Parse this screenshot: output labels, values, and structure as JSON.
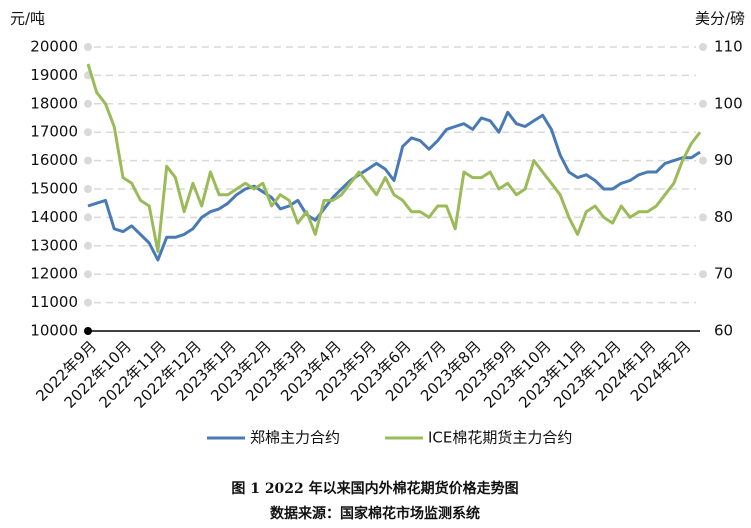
{
  "chart_data": {
    "type": "line",
    "caption": "图 1 2022 年以来国内外棉花期货价格走势图",
    "source": "数据来源：国家棉花市场监测系统",
    "y_label": "元/吨",
    "y2_label": "美分/磅",
    "categories": [
      "2022年9月",
      null,
      null,
      null,
      "2022年10月",
      null,
      null,
      null,
      "2022年11月",
      null,
      null,
      null,
      "2022年12月",
      null,
      null,
      null,
      "2023年1月",
      null,
      null,
      null,
      "2023年2月",
      null,
      null,
      null,
      "2023年3月",
      null,
      null,
      null,
      "2023年4月",
      null,
      null,
      null,
      "2023年5月",
      null,
      null,
      null,
      "2023年6月",
      null,
      null,
      null,
      "2023年7月",
      null,
      null,
      null,
      "2023年8月",
      null,
      null,
      null,
      "2023年9月",
      null,
      null,
      null,
      "2023年10月",
      null,
      null,
      null,
      "2023年11月",
      null,
      null,
      null,
      "2023年12月",
      null,
      null,
      null,
      "2024年1月",
      null,
      null,
      null,
      "2024年2月",
      null,
      null
    ],
    "series": [
      {
        "name": "郑棉主力合约",
        "color": "#4a7ab5",
        "values": [
          14400,
          14500,
          14600,
          13600,
          13500,
          13700,
          13400,
          13100,
          12500,
          13300,
          13300,
          13400,
          13600,
          14000,
          14200,
          14300,
          14500,
          14800,
          15000,
          15100,
          14900,
          14700,
          14300,
          14400,
          14600,
          14100,
          13900,
          14300,
          14700,
          15000,
          15300,
          15500,
          15700,
          15900,
          15700,
          15300,
          16500,
          16800,
          16700,
          16400,
          16700,
          17100,
          17200,
          17300,
          17100,
          17500,
          17400,
          17000,
          17700,
          17300,
          17200,
          17400,
          17600,
          17100,
          16200,
          15600,
          15400,
          15500,
          15300,
          15000,
          15000,
          15200,
          15300,
          15500,
          15600,
          15600,
          15900,
          16000,
          16100,
          16100,
          16300
        ]
      },
      {
        "name": "ICE棉花期货主力合约",
        "color": "#9bbb59",
        "axis": "y2",
        "values": [
          107,
          102,
          100,
          96,
          87,
          86,
          83,
          82,
          74,
          89,
          87,
          81,
          86,
          82,
          88,
          84,
          84,
          85,
          86,
          85,
          86,
          82,
          84,
          83,
          79,
          81,
          77,
          83,
          83,
          84,
          86,
          88,
          86,
          84,
          87,
          84,
          83,
          81,
          81,
          80,
          82,
          82,
          78,
          88,
          87,
          87,
          88,
          85,
          86,
          84,
          85,
          90,
          88,
          86,
          84,
          80,
          77,
          81,
          82,
          80,
          79,
          82,
          80,
          81,
          81,
          82,
          84,
          86,
          90,
          93,
          95
        ]
      }
    ],
    "ylim": [
      10000,
      20000
    ],
    "yticks": [
      10000,
      11000,
      12000,
      13000,
      14000,
      15000,
      16000,
      17000,
      18000,
      19000,
      20000
    ],
    "y2lim": [
      60,
      110
    ],
    "y2ticks": [
      60,
      70,
      80,
      90,
      100,
      110
    ],
    "grid": true
  }
}
